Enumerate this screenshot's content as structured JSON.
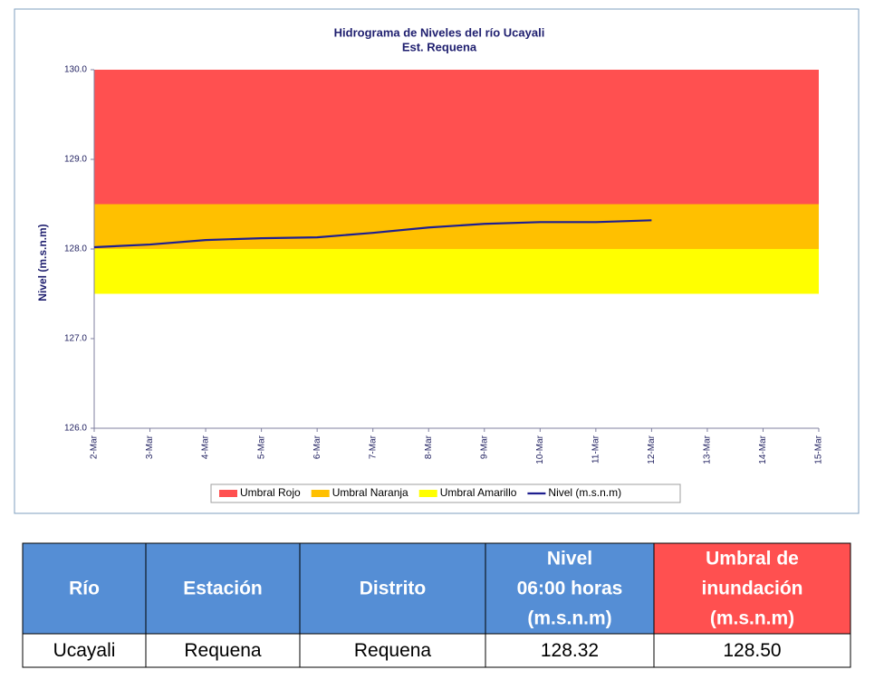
{
  "chart_data": {
    "type": "line",
    "title": "Hidrograma de Niveles del río Ucayali",
    "subtitle": "Est. Requena",
    "y_label": "Nivel (m.s.n.m)",
    "categories": [
      "2-Mar",
      "3-Mar",
      "4-Mar",
      "5-Mar",
      "6-Mar",
      "7-Mar",
      "8-Mar",
      "9-Mar",
      "10-Mar",
      "11-Mar",
      "12-Mar",
      "13-Mar",
      "14-Mar",
      "15-Mar"
    ],
    "bands": [
      {
        "name": "Umbral Rojo",
        "color": "#ff5050",
        "min": 128.5,
        "max": 130
      },
      {
        "name": "Umbral Naranja",
        "color": "#ffc000",
        "min": 128.0,
        "max": 128.5
      },
      {
        "name": "Umbral Amarillo",
        "color": "#ffff00",
        "min": 127.5,
        "max": 128.0
      }
    ],
    "series": [
      {
        "name": "Nivel (m.s.n.m)",
        "color": "#1f1f8f",
        "values": [
          128.02,
          128.05,
          128.1,
          128.12,
          128.13,
          128.18,
          128.24,
          128.28,
          128.3,
          128.3,
          128.32,
          null,
          null,
          null
        ]
      }
    ],
    "ylim": [
      126,
      130
    ],
    "yticks": [
      {
        "value": 126,
        "label": "126.0"
      },
      {
        "value": 127,
        "label": "127.0"
      },
      {
        "value": 128,
        "label": "128.0"
      },
      {
        "value": 129,
        "label": "129.0"
      },
      {
        "value": 130,
        "label": "130.0"
      }
    ],
    "legend": "bottom"
  },
  "table": {
    "header": [
      [
        "Río"
      ],
      [
        "Estación"
      ],
      [
        "Distrito"
      ],
      [
        "Nivel",
        "06:00 horas",
        "(m.s.n.m)"
      ],
      [
        "Umbral de",
        "inundación",
        "(m.s.n.m)"
      ]
    ],
    "header_colors": [
      "#558ed5",
      "#558ed5",
      "#558ed5",
      "#558ed5",
      "#ff5050"
    ],
    "rows": [
      [
        "Ucayali",
        "Requena",
        "Requena",
        "128.32",
        "128.50"
      ]
    ]
  }
}
